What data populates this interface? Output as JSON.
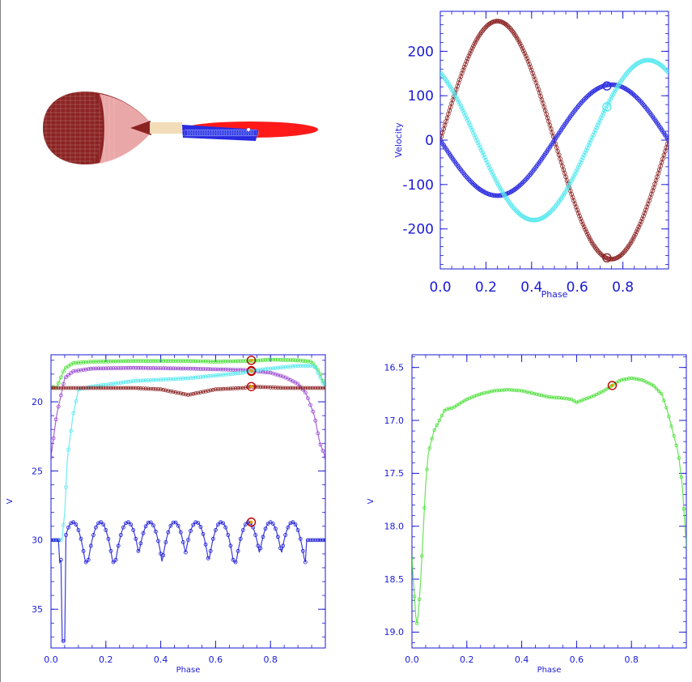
{
  "colors": {
    "axis": "#1a1ad6",
    "primary": "#8b2323",
    "primary_light": "#f4b6b6",
    "disk_red": "#ff1a1a",
    "disk_blue": "#2a2ae0",
    "stream": "#f3dcb8",
    "cyan": "#55e8ee",
    "green": "#4ddf3a",
    "purple": "#9a4ad0",
    "marker_ring": "#c00000",
    "marker_dot": "#e0a000"
  },
  "system_view": {
    "components": [
      "donor-star",
      "accretion-stream",
      "accretion-disk"
    ]
  },
  "chart_data": [
    {
      "id": "velocity",
      "type": "line",
      "xlabel": "Phase",
      "ylabel": "Velocity",
      "xlim": [
        0,
        1
      ],
      "ylim": [
        -290,
        290
      ],
      "xticks": [
        "0.0",
        "0.2",
        "0.4",
        "0.6",
        "0.8"
      ],
      "xtick_values": [
        0,
        0.2,
        0.4,
        0.6,
        0.8
      ],
      "yticks": [
        "-200",
        "-100",
        "0",
        "100",
        "200"
      ],
      "ytick_values": [
        -200,
        -100,
        0,
        100,
        200
      ],
      "current_phase": 0.73,
      "series": [
        {
          "color": "primary",
          "curve": "sine",
          "amplitude": 268,
          "peak_phase": 0.25,
          "offset": 0,
          "marker_value": -265
        },
        {
          "color": "disk_blue",
          "curve": "sine",
          "amplitude": 125,
          "peak_phase": 0.75,
          "offset": 0,
          "marker_value": 122
        },
        {
          "color": "cyan",
          "curve": "sine",
          "amplitude": 180,
          "peak_phase": 0.91,
          "offset": 0,
          "marker_value": 75
        }
      ]
    },
    {
      "id": "lightcurve-components",
      "type": "line",
      "xlabel": "Phase",
      "ylabel": "V",
      "xlim": [
        0,
        1
      ],
      "ylim": [
        37.8,
        16.6
      ],
      "inverted_y": true,
      "xticks": [
        "0.0",
        "0.2",
        "0.4",
        "0.6",
        "0.8"
      ],
      "xtick_values": [
        0,
        0.2,
        0.4,
        0.6,
        0.8
      ],
      "yticks": [
        "20",
        "25",
        "30",
        "35"
      ],
      "ytick_values": [
        20,
        25,
        30,
        35
      ],
      "current_phase": 0.73,
      "series": [
        {
          "color": "green",
          "x": [
            0,
            0.02,
            0.05,
            0.08,
            0.15,
            0.3,
            0.5,
            0.6,
            0.7,
            0.73,
            0.8,
            0.9,
            0.95,
            0.98,
            1.0
          ],
          "y": [
            18.9,
            19.0,
            17.6,
            17.2,
            17.1,
            17.05,
            17.05,
            17.1,
            17.05,
            17.05,
            16.95,
            17.0,
            17.1,
            17.9,
            19.0
          ],
          "marker_value": 17.0
        },
        {
          "color": "purple",
          "x": [
            0,
            0.02,
            0.05,
            0.08,
            0.15,
            0.3,
            0.5,
            0.7,
            0.73,
            0.8,
            0.85,
            0.9,
            0.93,
            0.96,
            0.98,
            1.0
          ],
          "y": [
            24.0,
            21.0,
            18.3,
            17.8,
            17.6,
            17.55,
            17.6,
            17.7,
            17.75,
            17.9,
            18.2,
            18.7,
            19.4,
            21.0,
            23.0,
            24.0
          ],
          "marker_value": 17.8
        },
        {
          "color": "cyan",
          "x": [
            0,
            0.03,
            0.04,
            0.05,
            0.06,
            0.08,
            0.1,
            0.15,
            0.3,
            0.5,
            0.6,
            0.7,
            0.73,
            0.8,
            0.9,
            0.96,
            1.0
          ],
          "y": [
            30.0,
            30.0,
            30.0,
            28.0,
            24.0,
            21.0,
            19.1,
            18.9,
            18.5,
            18.3,
            18.1,
            17.9,
            17.75,
            17.6,
            17.4,
            17.4,
            19.0
          ],
          "marker_value": 17.75
        },
        {
          "color": "primary",
          "x": [
            0,
            0.1,
            0.3,
            0.4,
            0.45,
            0.5,
            0.55,
            0.6,
            0.7,
            0.73,
            0.85,
            1.0
          ],
          "y": [
            19.0,
            19.0,
            19.0,
            19.1,
            19.3,
            19.5,
            19.3,
            19.1,
            19.0,
            18.9,
            19.0,
            19.0
          ],
          "marker_value": 18.9
        },
        {
          "color": "axis",
          "curve": "flicker",
          "base": 30.0,
          "top": 28.7,
          "bottom": 31.6,
          "dip_phase": 0.045,
          "dip_value": 37.3,
          "lobes": [
            0.08,
            0.18,
            0.28,
            0.36,
            0.45,
            0.53,
            0.62,
            0.72,
            0.8,
            0.88
          ],
          "marker_value": 28.7
        }
      ]
    },
    {
      "id": "lightcurve-total",
      "type": "line",
      "xlabel": "Phase",
      "ylabel": "V",
      "xlim": [
        0,
        1
      ],
      "ylim": [
        19.15,
        16.38
      ],
      "inverted_y": true,
      "xticks": [
        "0.0",
        "0.2",
        "0.4",
        "0.6",
        "0.8"
      ],
      "xtick_values": [
        0,
        0.2,
        0.4,
        0.6,
        0.8
      ],
      "yticks": [
        "16.5",
        "17.0",
        "17.5",
        "18.0",
        "18.5",
        "19.0"
      ],
      "ytick_values": [
        16.5,
        17.0,
        17.5,
        18.0,
        18.5,
        19.0
      ],
      "current_phase": 0.73,
      "series": [
        {
          "color": "green",
          "x": [
            0,
            0.005,
            0.01,
            0.015,
            0.02,
            0.03,
            0.04,
            0.05,
            0.06,
            0.08,
            0.1,
            0.12,
            0.15,
            0.2,
            0.25,
            0.3,
            0.35,
            0.4,
            0.45,
            0.5,
            0.55,
            0.58,
            0.6,
            0.63,
            0.66,
            0.7,
            0.73,
            0.76,
            0.8,
            0.84,
            0.88,
            0.91,
            0.93,
            0.95,
            0.97,
            0.985,
            1.0
          ],
          "y": [
            18.3,
            18.5,
            18.7,
            18.9,
            18.93,
            18.6,
            18.1,
            17.6,
            17.3,
            17.1,
            17.0,
            16.9,
            16.88,
            16.8,
            16.75,
            16.72,
            16.71,
            16.72,
            16.75,
            16.78,
            16.79,
            16.8,
            16.83,
            16.8,
            16.77,
            16.72,
            16.67,
            16.62,
            16.6,
            16.62,
            16.67,
            16.75,
            16.9,
            17.1,
            17.3,
            17.6,
            18.2
          ],
          "marker_value": 16.67
        }
      ]
    }
  ]
}
